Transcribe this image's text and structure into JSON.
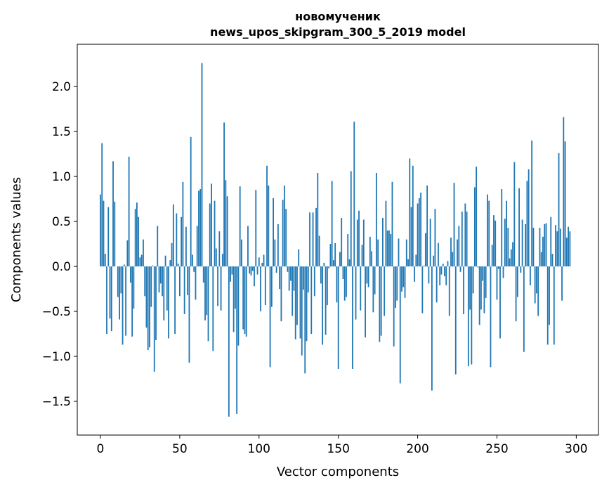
{
  "chart_data": {
    "type": "bar",
    "title": [
      "новомученик",
      "news_upos_skipgram_300_5_2019 model"
    ],
    "xlabel": "Vector components",
    "ylabel": "Components values",
    "xlim": [
      -14.6,
      314
    ],
    "ylim": [
      -1.875,
      2.47
    ],
    "xticks": [
      0,
      50,
      100,
      150,
      200,
      250,
      300
    ],
    "xtick_labels": [
      "0",
      "50",
      "100",
      "150",
      "200",
      "250",
      "300"
    ],
    "yticks": [
      -1.5,
      -1.0,
      -0.5,
      0.0,
      0.5,
      1.0,
      1.5,
      2.0
    ],
    "ytick_labels": [
      "−1.5",
      "−1.0",
      "−0.5",
      "0.0",
      "0.5",
      "1.0",
      "1.5",
      "2.0"
    ],
    "grid": false,
    "color": "#1f77b4",
    "values": [
      0.8,
      1.37,
      0.73,
      0.14,
      -0.75,
      0.66,
      -0.58,
      -0.72,
      1.17,
      0.72,
      0.0,
      -0.34,
      -0.59,
      -0.3,
      -0.87,
      0.02,
      -0.77,
      0.29,
      1.22,
      -0.18,
      -0.78,
      -0.47,
      0.64,
      0.71,
      0.55,
      0.1,
      0.13,
      0.3,
      -0.33,
      -0.68,
      -0.93,
      -0.9,
      -0.45,
      0.01,
      -1.17,
      -0.82,
      0.45,
      -0.29,
      -0.19,
      -0.33,
      -0.6,
      0.12,
      -0.49,
      -0.8,
      0.07,
      0.26,
      0.69,
      -0.75,
      0.59,
      0.03,
      -0.33,
      0.55,
      0.94,
      -0.53,
      0.44,
      -0.32,
      -1.07,
      1.44,
      0.13,
      -0.06,
      -0.37,
      0.45,
      0.84,
      0.86,
      2.26,
      -0.18,
      -0.6,
      -0.54,
      -0.83,
      0.7,
      0.92,
      -0.94,
      0.73,
      0.2,
      -0.44,
      0.39,
      -0.49,
      0.14,
      1.6,
      0.96,
      0.78,
      -1.67,
      -0.17,
      -0.09,
      -0.73,
      -0.47,
      -1.64,
      -0.88,
      0.89,
      0.3,
      -0.7,
      -0.75,
      -0.78,
      0.45,
      -0.08,
      -0.1,
      -0.05,
      -0.22,
      0.85,
      -0.09,
      0.1,
      -0.5,
      0.04,
      0.13,
      -0.43,
      1.12,
      0.9,
      -1.12,
      -0.45,
      0.76,
      0.3,
      -0.07,
      0.47,
      -0.25,
      -0.61,
      0.74,
      0.9,
      0.64,
      -0.06,
      -0.27,
      -0.16,
      -0.55,
      -0.27,
      -0.81,
      -0.65,
      0.19,
      -0.8,
      -0.99,
      -0.26,
      -1.19,
      -0.83,
      -0.29,
      0.6,
      -0.75,
      0.6,
      -0.33,
      0.65,
      1.04,
      0.34,
      -0.19,
      -0.87,
      0.04,
      -0.76,
      -0.43,
      -0.02,
      0.25,
      0.95,
      0.07,
      0.26,
      -0.4,
      -1.14,
      0.16,
      0.54,
      -0.14,
      -0.38,
      -0.34,
      0.36,
      0.08,
      1.06,
      -1.14,
      1.61,
      -0.59,
      0.52,
      0.62,
      -0.49,
      0.24,
      0.52,
      -0.79,
      -0.19,
      -0.23,
      0.33,
      0.17,
      -0.51,
      -0.31,
      1.04,
      0.3,
      -0.84,
      -0.77,
      0.54,
      -0.55,
      0.73,
      0.4,
      0.4,
      0.36,
      0.94,
      -0.89,
      -0.46,
      -0.38,
      0.31,
      -1.3,
      -0.28,
      -0.23,
      -0.35,
      0.3,
      0.08,
      1.2,
      0.66,
      1.12,
      -0.17,
      0.13,
      0.7,
      0.76,
      0.82,
      -0.52,
      0.01,
      0.37,
      0.9,
      -0.19,
      0.53,
      -1.38,
      0.12,
      0.64,
      -0.4,
      0.26,
      -0.21,
      -0.09,
      0.03,
      -0.11,
      -0.21,
      0.06,
      -0.55,
      0.32,
      0.16,
      0.93,
      -1.2,
      0.3,
      0.45,
      -0.06,
      0.61,
      -0.53,
      0.7,
      0.61,
      -1.11,
      -0.48,
      -1.09,
      -0.3,
      0.88,
      1.11,
      -0.01,
      -0.65,
      -0.48,
      -0.16,
      -0.52,
      -0.35,
      0.8,
      0.73,
      -1.12,
      0.24,
      0.57,
      0.51,
      -0.37,
      -0.03,
      -0.8,
      0.86,
      -0.13,
      0.53,
      0.73,
      0.43,
      0.09,
      0.19,
      0.27,
      1.16,
      -0.61,
      -0.34,
      0.87,
      -0.07,
      0.52,
      -0.95,
      0.47,
      0.95,
      1.08,
      -0.21,
      1.4,
      0.43,
      -0.41,
      -0.3,
      -0.55,
      0.43,
      0.16,
      0.33,
      0.47,
      0.48,
      -0.87,
      -0.65,
      0.55,
      0.14,
      -0.87,
      0.46,
      0.39,
      1.26,
      0.42,
      -0.38,
      1.66,
      1.39,
      0.32,
      0.44,
      0.39
    ]
  }
}
